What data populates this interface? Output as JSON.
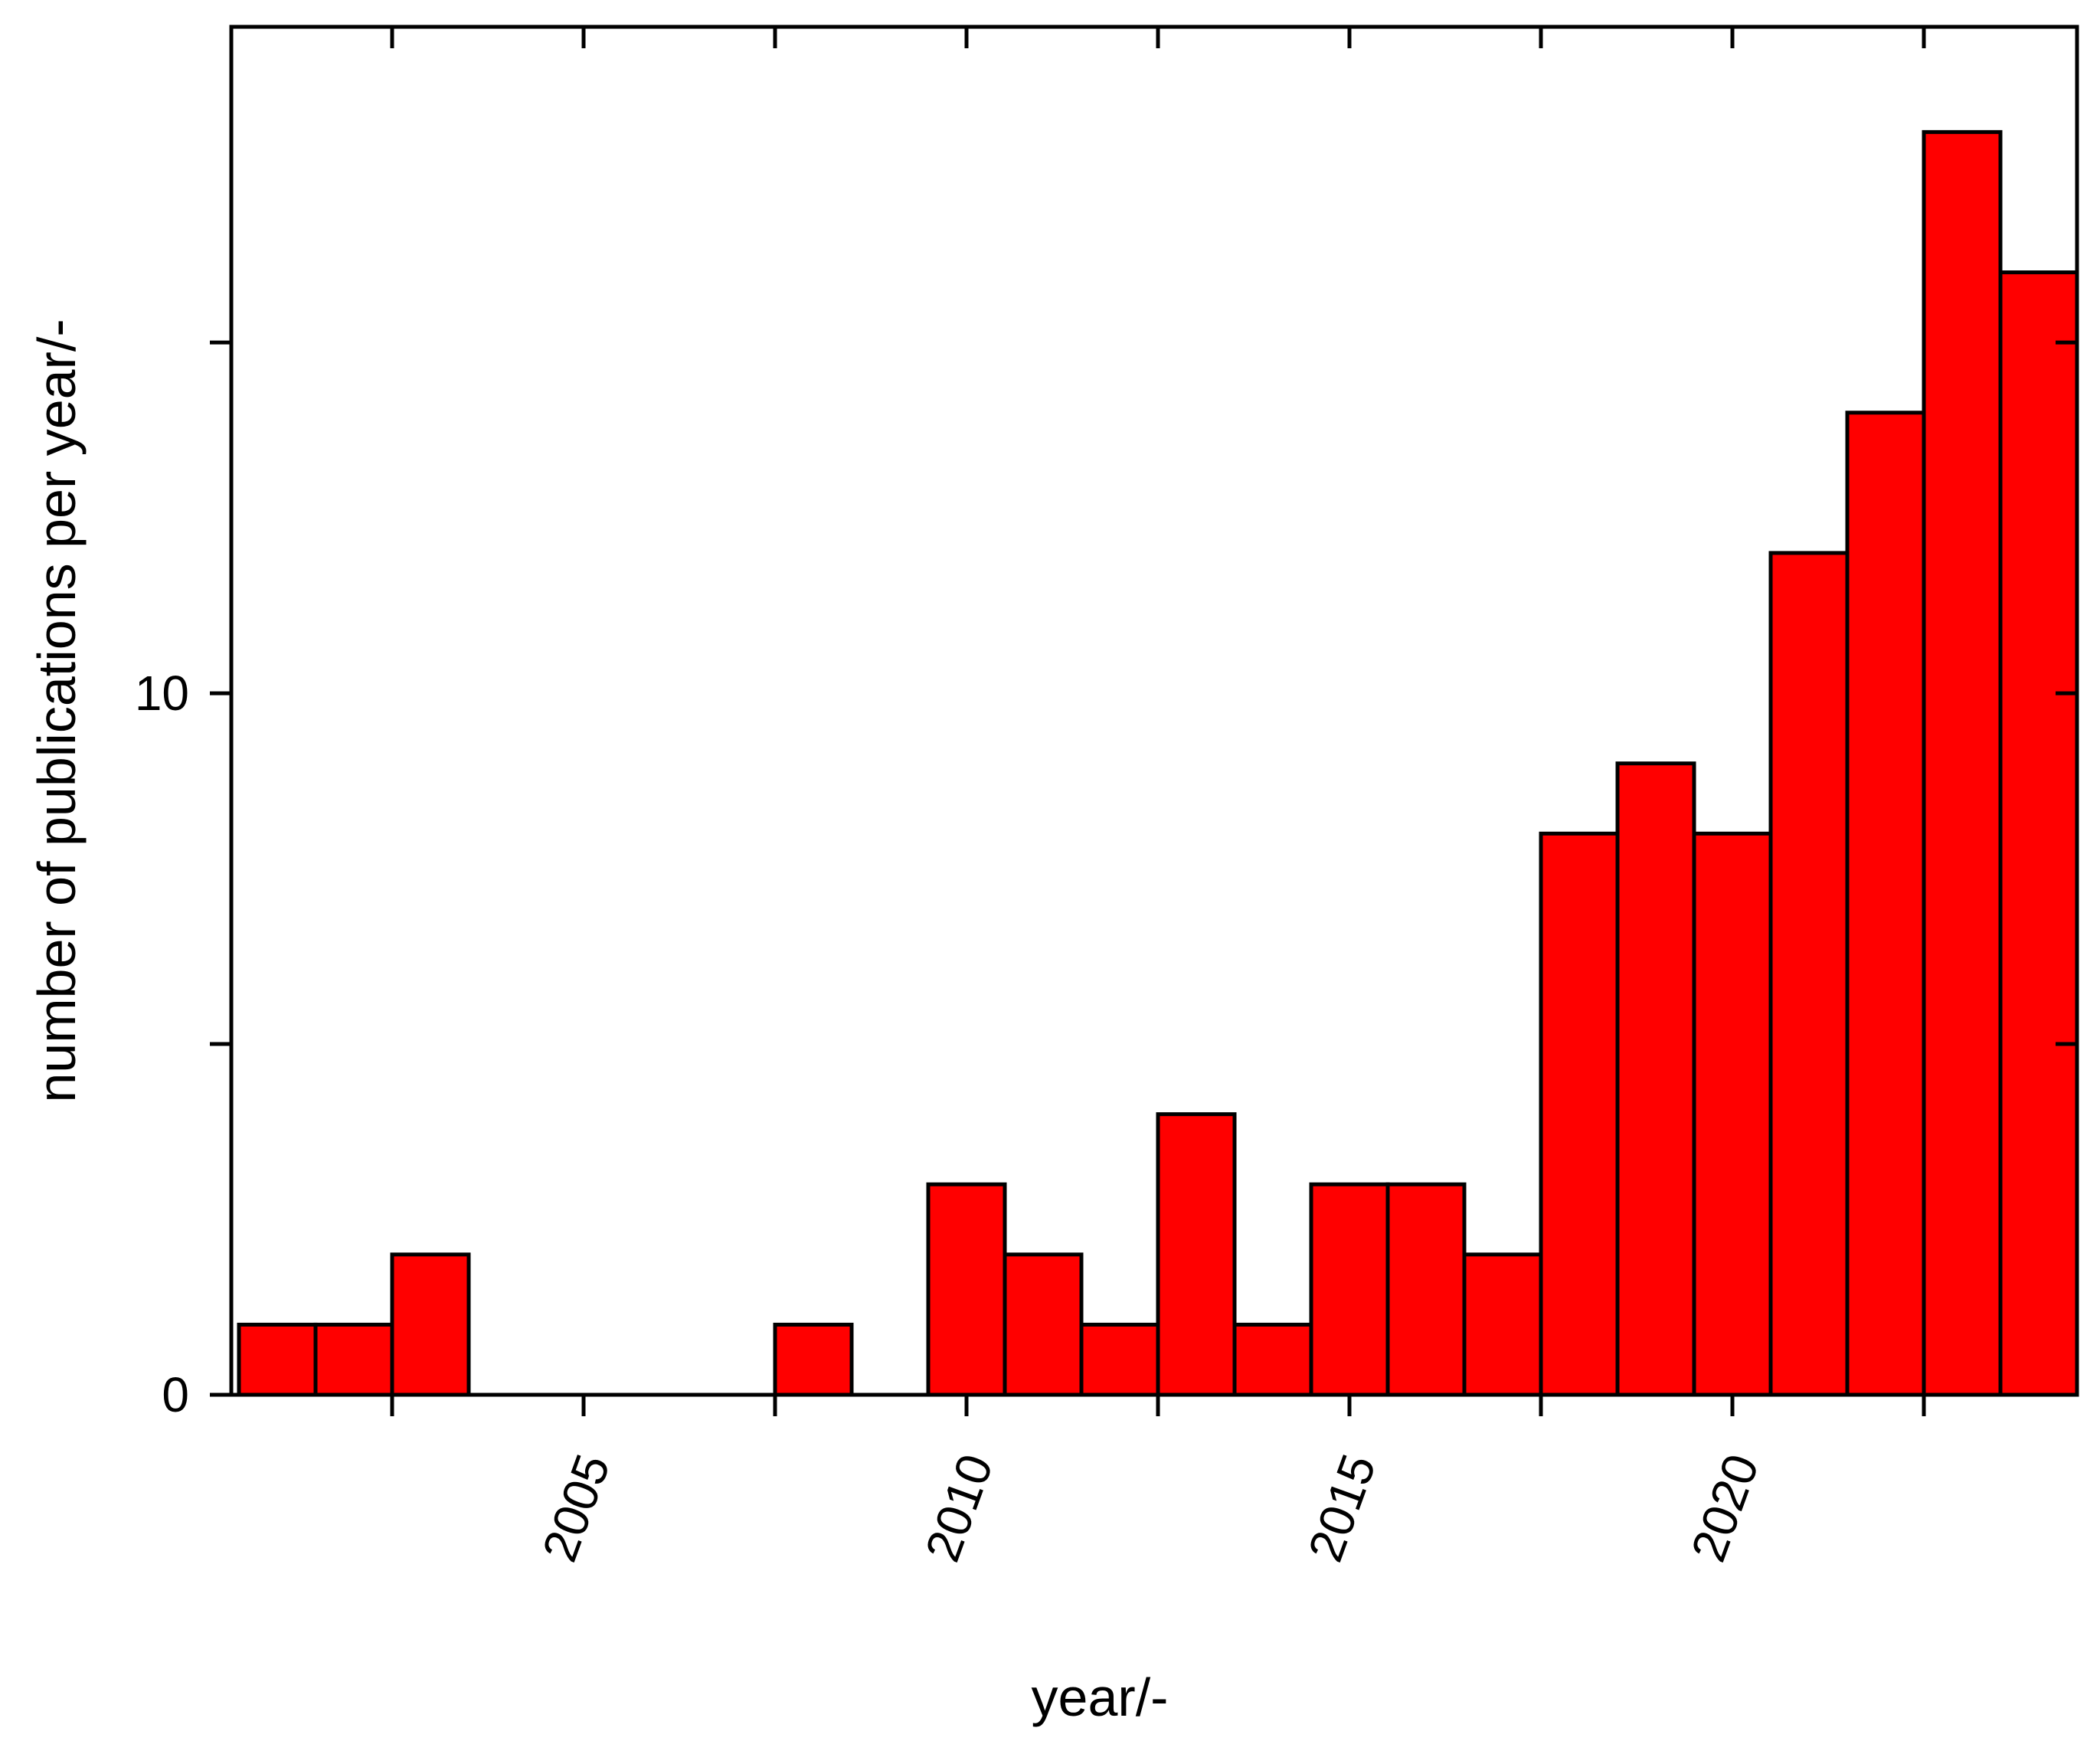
{
  "chart_data": {
    "type": "bar",
    "xlabel": "year/-",
    "ylabel": "number of publications per year/-",
    "xlim": [
      2000.4,
      2024.5
    ],
    "ylim": [
      0,
      19.5
    ],
    "x_tick_labels": [
      "2005",
      "2010",
      "2015",
      "2020"
    ],
    "y_tick_labels": [
      "0",
      "10"
    ],
    "y_tick_values": [
      0,
      5,
      10,
      15
    ],
    "x_tick_values": [
      2002.5,
      2005,
      2007.5,
      2010,
      2012.5,
      2015,
      2017.5,
      2020,
      2022.5
    ],
    "grid": false,
    "bar_color": "#ff0000",
    "edge_color": "#000000",
    "bars": [
      {
        "year": 2001,
        "value": 1
      },
      {
        "year": 2002,
        "value": 1
      },
      {
        "year": 2003,
        "value": 2
      },
      {
        "year": 2004,
        "value": 0
      },
      {
        "year": 2005,
        "value": 0
      },
      {
        "year": 2006,
        "value": 0
      },
      {
        "year": 2007,
        "value": 0
      },
      {
        "year": 2008,
        "value": 1
      },
      {
        "year": 2009,
        "value": 0
      },
      {
        "year": 2010,
        "value": 3
      },
      {
        "year": 2011,
        "value": 2
      },
      {
        "year": 2012,
        "value": 1
      },
      {
        "year": 2013,
        "value": 4
      },
      {
        "year": 2014,
        "value": 1
      },
      {
        "year": 2015,
        "value": 3
      },
      {
        "year": 2016,
        "value": 3
      },
      {
        "year": 2017,
        "value": 2
      },
      {
        "year": 2018,
        "value": 8
      },
      {
        "year": 2019,
        "value": 9
      },
      {
        "year": 2020,
        "value": 8
      },
      {
        "year": 2021,
        "value": 12
      },
      {
        "year": 2022,
        "value": 14
      },
      {
        "year": 2023,
        "value": 18
      },
      {
        "year": 2024,
        "value": 16
      }
    ]
  }
}
